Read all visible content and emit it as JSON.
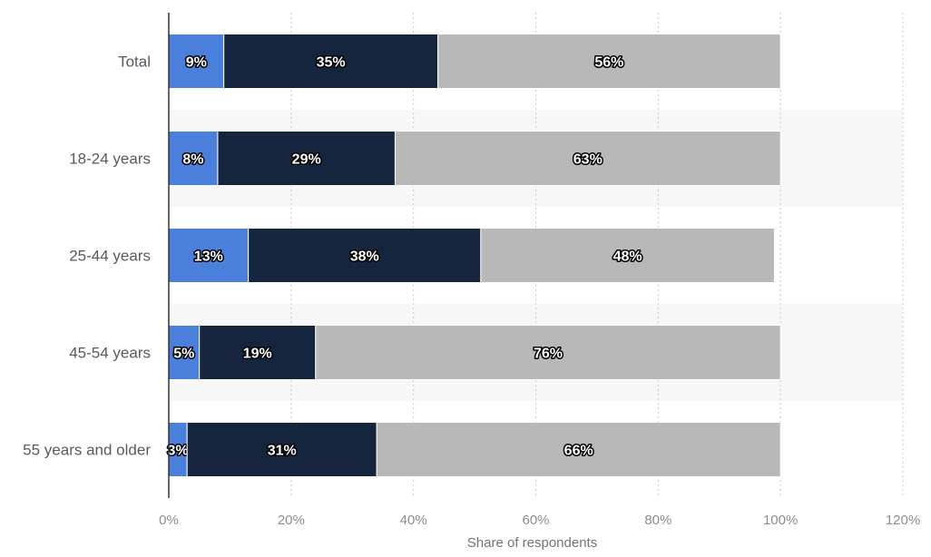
{
  "chart_data": {
    "type": "bar",
    "orientation": "horizontal",
    "stacked": true,
    "categories": [
      "Total",
      "18-24 years",
      "25-44 years",
      "45-54 years",
      "55 years and older"
    ],
    "series": [
      {
        "values": [
          9,
          8,
          13,
          5,
          3
        ],
        "color": "#4a7fdc"
      },
      {
        "values": [
          35,
          29,
          38,
          19,
          31
        ],
        "color": "#14253d"
      },
      {
        "values": [
          56,
          63,
          48,
          76,
          66
        ],
        "color": "#b8b8b8"
      }
    ],
    "data_labels": [
      [
        "9%",
        "8%",
        "13%",
        "5%",
        "3%"
      ],
      [
        "35%",
        "29%",
        "38%",
        "19%",
        "31%"
      ],
      [
        "56%",
        "63%",
        "48%",
        "76%",
        "66%"
      ]
    ],
    "xlabel": "Share of respondents",
    "ylabel": "",
    "xlim": [
      0,
      120
    ],
    "x_ticks": [
      "0%",
      "20%",
      "40%",
      "60%",
      "80%",
      "100%",
      "120%"
    ],
    "x_tick_values": [
      0,
      20,
      40,
      60,
      80,
      100,
      120
    ],
    "grid": "vertical dotted",
    "alternate_row_shading": true,
    "legend": "none"
  }
}
